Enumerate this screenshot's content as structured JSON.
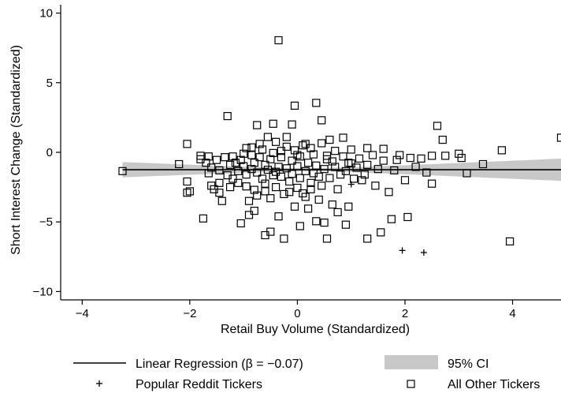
{
  "chart_data": {
    "type": "scatter",
    "xlabel": "Retail Buy Volume (Standardized)",
    "ylabel": "Short Interest Change (Standardized)",
    "xlim": [
      -4.4,
      4.9
    ],
    "ylim": [
      -10.6,
      10.6
    ],
    "x_ticks": [
      -4,
      -2,
      0,
      2,
      4
    ],
    "y_ticks": [
      -10,
      -5,
      0,
      5,
      10
    ],
    "x_tick_labels": [
      "−4",
      "−2",
      "0",
      "2",
      "4"
    ],
    "y_tick_labels": [
      "−10",
      "−5",
      "0",
      "5",
      "10"
    ],
    "grid": false,
    "legend_position": "bottom",
    "regression": {
      "slope": -0.0005,
      "intercept": -1.25,
      "x_range": [
        -3.25,
        4.9
      ],
      "ci_lower_at_ends": [
        -1.8,
        -2.05
      ],
      "ci_upper_at_ends": [
        -0.7,
        -0.45
      ],
      "ci_center_x": 0.2,
      "ci_center_halfwidth": 0.12
    },
    "series": [
      {
        "name": "Linear Regression (β = −0.07)",
        "kind": "line",
        "color": "#000000"
      },
      {
        "name": "95% CI",
        "kind": "band",
        "color": "#c8c8c8"
      },
      {
        "name": "Popular Reddit Tickers",
        "kind": "plus",
        "color": "#000000",
        "points": [
          [
            1.0,
            -2.3
          ],
          [
            1.95,
            -7.05
          ],
          [
            2.35,
            -7.2
          ]
        ]
      },
      {
        "name": "All Other Tickers",
        "kind": "square",
        "color": "#000000",
        "points": [
          [
            -3.25,
            -1.35
          ],
          [
            -2.2,
            -0.85
          ],
          [
            -2.05,
            0.6
          ],
          [
            -2.05,
            -2.1
          ],
          [
            -2.0,
            -2.8
          ],
          [
            -2.05,
            -2.9
          ],
          [
            -1.75,
            -4.75
          ],
          [
            -1.8,
            -0.5
          ],
          [
            -1.8,
            -0.25
          ],
          [
            -1.7,
            -0.75
          ],
          [
            -1.65,
            -1.5
          ],
          [
            -1.6,
            -1.1
          ],
          [
            -1.55,
            -2.65
          ],
          [
            -1.6,
            -2.4
          ],
          [
            -1.5,
            -0.55
          ],
          [
            -1.45,
            -2.2
          ],
          [
            -1.45,
            -2.9
          ],
          [
            -1.4,
            -3.5
          ],
          [
            -1.35,
            -0.35
          ],
          [
            -1.3,
            -1.65
          ],
          [
            -1.25,
            -2.5
          ],
          [
            -1.25,
            -0.9
          ],
          [
            -1.2,
            -0.3
          ],
          [
            -1.15,
            -0.75
          ],
          [
            -1.1,
            -1.35
          ],
          [
            -1.1,
            -2.2
          ],
          [
            -1.05,
            -0.55
          ],
          [
            -1.0,
            -1.0
          ],
          [
            -0.95,
            -1.6
          ],
          [
            -0.95,
            -2.45
          ],
          [
            -0.95,
            0.3
          ],
          [
            -0.9,
            -3.5
          ],
          [
            -0.9,
            -4.5
          ],
          [
            -0.85,
            -1.2
          ],
          [
            -0.85,
            -0.2
          ],
          [
            -0.8,
            -2.7
          ],
          [
            -0.8,
            -0.75
          ],
          [
            -0.75,
            -1.45
          ],
          [
            -0.75,
            -3.1
          ],
          [
            -0.7,
            0.6
          ],
          [
            -0.7,
            -0.35
          ],
          [
            -0.65,
            -1.9
          ],
          [
            -0.6,
            -0.9
          ],
          [
            -0.6,
            -2.25
          ],
          [
            -0.55,
            1.1
          ],
          [
            -0.55,
            -1.25
          ],
          [
            -0.5,
            -0.5
          ],
          [
            -0.5,
            -3.3
          ],
          [
            -0.45,
            -1.65
          ],
          [
            -0.45,
            -0.05
          ],
          [
            -0.4,
            0.75
          ],
          [
            -0.4,
            -2.5
          ],
          [
            -0.35,
            -1.05
          ],
          [
            -0.35,
            -4.6
          ],
          [
            -0.3,
            -0.35
          ],
          [
            -0.3,
            -1.75
          ],
          [
            -0.25,
            -3.0
          ],
          [
            -0.2,
            0.4
          ],
          [
            -0.2,
            -1.15
          ],
          [
            -0.15,
            -2.1
          ],
          [
            -0.1,
            -0.6
          ],
          [
            -0.1,
            -1.55
          ],
          [
            -0.05,
            0.15
          ],
          [
            -0.05,
            -3.9
          ],
          [
            0.0,
            -2.55
          ],
          [
            0.0,
            -1.0
          ],
          [
            0.05,
            -0.3
          ],
          [
            0.05,
            -1.85
          ],
          [
            0.1,
            0.5
          ],
          [
            0.1,
            -2.95
          ],
          [
            0.15,
            -1.35
          ],
          [
            0.2,
            -0.75
          ],
          [
            0.2,
            -4.05
          ],
          [
            0.25,
            -2.2
          ],
          [
            0.3,
            -0.15
          ],
          [
            0.3,
            -1.5
          ],
          [
            0.35,
            -0.95
          ],
          [
            0.4,
            -3.4
          ],
          [
            0.45,
            0.65
          ],
          [
            0.45,
            -2.4
          ],
          [
            0.5,
            -1.2
          ],
          [
            0.5,
            -5.05
          ],
          [
            0.55,
            -0.5
          ],
          [
            0.6,
            -1.85
          ],
          [
            0.65,
            -3.75
          ],
          [
            0.7,
            0.1
          ],
          [
            0.7,
            -1.05
          ],
          [
            0.75,
            -2.65
          ],
          [
            0.8,
            -1.6
          ],
          [
            0.85,
            -0.3
          ],
          [
            0.9,
            -1.35
          ],
          [
            0.95,
            -0.75
          ],
          [
            1.0,
            0.2
          ],
          [
            1.05,
            -1.9
          ],
          [
            1.1,
            -1.1
          ],
          [
            1.15,
            -0.45
          ],
          [
            1.2,
            -2.0
          ],
          [
            1.3,
            -0.9
          ],
          [
            1.4,
            -0.2
          ],
          [
            1.5,
            -1.2
          ],
          [
            1.6,
            -0.6
          ],
          [
            1.7,
            -2.85
          ],
          [
            1.8,
            -1.3
          ],
          [
            1.9,
            -0.2
          ],
          [
            2.0,
            -2.0
          ],
          [
            2.1,
            -0.4
          ],
          [
            2.2,
            -1.05
          ],
          [
            2.4,
            -1.45
          ],
          [
            2.5,
            -2.25
          ],
          [
            2.5,
            -0.25
          ],
          [
            2.6,
            1.9
          ],
          [
            2.75,
            -0.25
          ],
          [
            2.7,
            0.9
          ],
          [
            3.0,
            -0.1
          ],
          [
            3.05,
            -0.4
          ],
          [
            3.15,
            -1.5
          ],
          [
            3.45,
            -0.85
          ],
          [
            3.8,
            0.15
          ],
          [
            3.95,
            -6.4
          ],
          [
            4.9,
            1.05
          ],
          [
            -0.5,
            -5.7
          ],
          [
            -0.6,
            -5.95
          ],
          [
            -0.8,
            -4.2
          ],
          [
            -1.05,
            -5.1
          ],
          [
            -0.25,
            -6.2
          ],
          [
            0.05,
            -5.3
          ],
          [
            0.35,
            -4.95
          ],
          [
            0.55,
            -6.2
          ],
          [
            0.75,
            -4.3
          ],
          [
            0.9,
            -5.2
          ],
          [
            0.95,
            -3.9
          ],
          [
            1.3,
            -6.2
          ],
          [
            1.55,
            -5.75
          ],
          [
            1.75,
            -4.8
          ],
          [
            2.05,
            -4.65
          ],
          [
            0.15,
            -3.2
          ],
          [
            -0.15,
            -2.85
          ],
          [
            -1.3,
            2.6
          ],
          [
            -0.75,
            1.95
          ],
          [
            -0.45,
            2.05
          ],
          [
            -0.1,
            2.0
          ],
          [
            -0.05,
            3.35
          ],
          [
            0.35,
            3.55
          ],
          [
            0.45,
            2.3
          ],
          [
            0.6,
            0.9
          ],
          [
            0.85,
            1.05
          ],
          [
            -0.35,
            8.05
          ],
          [
            0.0,
            -0.2
          ],
          [
            -0.3,
            0.1
          ],
          [
            -0.65,
            0.2
          ],
          [
            -1.0,
            -0.1
          ],
          [
            0.25,
            0.3
          ],
          [
            0.55,
            -0.25
          ],
          [
            1.3,
            0.3
          ],
          [
            1.6,
            0.25
          ],
          [
            1.85,
            -0.55
          ],
          [
            2.3,
            -0.45
          ],
          [
            -0.2,
            1.1
          ],
          [
            0.15,
            0.6
          ],
          [
            -0.85,
            0.35
          ],
          [
            0.65,
            -0.65
          ],
          [
            1.0,
            -0.8
          ],
          [
            1.25,
            -1.6
          ],
          [
            1.45,
            -2.4
          ],
          [
            -1.2,
            -1.9
          ],
          [
            -0.4,
            -1.4
          ],
          [
            0.4,
            -1.75
          ],
          [
            -0.6,
            -2.8
          ],
          [
            0.25,
            -2.65
          ],
          [
            -1.45,
            -1.3
          ],
          [
            -1.65,
            -0.3
          ]
        ]
      }
    ]
  }
}
